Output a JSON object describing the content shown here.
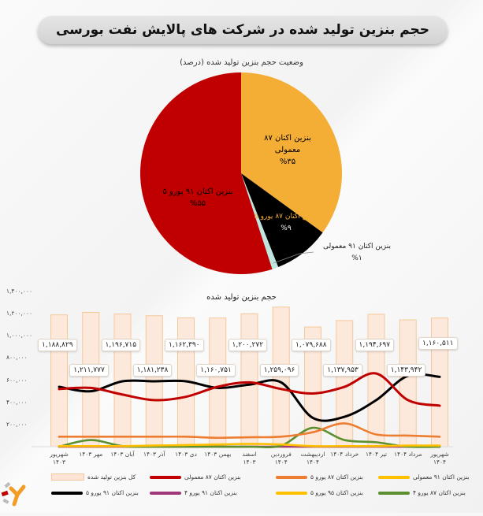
{
  "header": {
    "title": "حجم بنزین تولید شده در شرکت های پالایش نفت بورسی"
  },
  "pie": {
    "subtitle": "وضعیت حجم بنزین تولید شده (درصد)",
    "slices": [
      {
        "name": "بنزین اکتان ۸۷ معمولی",
        "line1": "بنزین اکتان ۸۷",
        "line2": "معمولی",
        "pct_label": "%۳۵",
        "value": 35,
        "color": "#f5ae35"
      },
      {
        "name": "بنزین اکتان ۸۷ یورو ۵",
        "line1": "بنزین اکتان ۸۷ یورو ۵",
        "pct_label": "%۹",
        "value": 9,
        "color": "#000000"
      },
      {
        "name": "بنزین اکتان ۹۱ معمولی",
        "line1": "بنزین اکتان ۹۱ معمولی",
        "pct_label": "%۱",
        "value": 1,
        "color": "#bfe5e0"
      },
      {
        "name": "بنزین اکتان ۹۱ یورو ۵",
        "line1": "بنزین اکتان ۹۱ یورو ۵",
        "pct_label": "%۵۵",
        "value": 55,
        "color": "#c00000"
      }
    ]
  },
  "line_chart": {
    "title": "حجم بنزین تولید شده",
    "y_ticks": [
      "-",
      "۲۰۰,۰۰۰",
      "۴۰۰,۰۰۰",
      "۶۰۰,۰۰۰",
      "۸۰۰,۰۰۰",
      "۱,۰۰۰,۰۰۰",
      "۱,۲۰۰,۰۰۰",
      "۱,۴۰۰,۰۰۰"
    ],
    "x_labels": [
      {
        "l1": "شهریور",
        "l2": "۱۴۰۳"
      },
      {
        "l1": "مهر ۱۴۰۳",
        "l2": ""
      },
      {
        "l1": "آبان ۱۴۰۳",
        "l2": ""
      },
      {
        "l1": "آذر ۱۴۰۳",
        "l2": ""
      },
      {
        "l1": "دی ۱۴۰۳",
        "l2": ""
      },
      {
        "l1": "بهمن ۱۴۰۳",
        "l2": ""
      },
      {
        "l1": "اسفند",
        "l2": "۱۴۰۳"
      },
      {
        "l1": "فروردین",
        "l2": "۱۴۰۴"
      },
      {
        "l1": "اردیبهشت",
        "l2": "۱۴۰۴"
      },
      {
        "l1": "خرداد ۱۴۰۴",
        "l2": ""
      },
      {
        "l1": "تیر ۱۴۰۴",
        "l2": ""
      },
      {
        "l1": "مرداد ۱۴۰۴",
        "l2": ""
      },
      {
        "l1": "شهریور",
        "l2": "۱۴۰۴"
      }
    ],
    "value_labels": [
      "۱,۱۸۸,۸۲۹",
      "۱,۲۱۱,۷۷۷",
      "۱,۱۹۶,۷۱۵",
      "۱,۱۸۱,۲۳۸",
      "۱,۱۶۲,۳۹۰",
      "۱,۱۶۰,۷۵۱",
      "۱,۲۰۰,۲۷۲",
      "۱,۲۵۹,۰۹۶",
      "۱,۰۷۹,۶۸۸",
      "۱,۱۳۷,۹۵۳",
      "۱,۱۹۴,۶۹۷",
      "۱,۱۴۳,۹۴۲",
      "۱,۱۶۰,۵۱۱"
    ]
  },
  "legend": [
    {
      "label": "کل بنزین تولید شده",
      "type": "bar",
      "color": "#fde4d4"
    },
    {
      "label": "بنزین اکتان ۸۷ معمولی",
      "type": "line",
      "color": "#c00000"
    },
    {
      "label": "بنزین اکتان ۸۷ یورو ۵",
      "type": "line",
      "color": "#ed7d31"
    },
    {
      "label": "بنزین اکتان ۹۱ معمولی",
      "type": "line",
      "color": "#ffc000"
    },
    {
      "label": "بنزین اکتان ۹۱ یورو ۵",
      "type": "line",
      "color": "#000000"
    },
    {
      "label": "بنزین اکتان ۹۱ یورو ۴",
      "type": "line",
      "color": "#a0377a"
    },
    {
      "label": "بنزین اکتان ۹۵ یورو ۵",
      "type": "line",
      "color": "#ffc000"
    },
    {
      "label": "بنزین اکتان ۸۷ یورو ۴",
      "type": "line",
      "color": "#5b8f2f"
    }
  ],
  "chart_data": [
    {
      "type": "pie",
      "title": "وضعیت حجم بنزین تولید شده (درصد)",
      "categories": [
        "بنزین اکتان ۸۷ معمولی",
        "بنزین اکتان ۸۷ یورو ۵",
        "بنزین اکتان ۹۱ معمولی",
        "بنزین اکتان ۹۱ یورو ۵"
      ],
      "values": [
        35,
        9,
        1,
        55
      ],
      "colors": [
        "#f5ae35",
        "#000000",
        "#bfe5e0",
        "#c00000"
      ]
    },
    {
      "type": "bar",
      "title": "حجم بنزین تولید شده",
      "xlabel": "",
      "ylabel": "",
      "ylim": [
        0,
        1400000
      ],
      "grid": false,
      "legend_position": "bottom",
      "categories": [
        "شهریور ۱۴۰۳",
        "مهر ۱۴۰۳",
        "آبان ۱۴۰۳",
        "آذر ۱۴۰۳",
        "دی ۱۴۰۳",
        "بهمن ۱۴۰۳",
        "اسفند ۱۴۰۳",
        "فروردین ۱۴۰۴",
        "اردیبهشت ۱۴۰۴",
        "خرداد ۱۴۰۴",
        "تیر ۱۴۰۴",
        "مرداد ۱۴۰۴",
        "شهریور ۱۴۰۴"
      ],
      "series": [
        {
          "name": "کل بنزین تولید شده",
          "type": "bar",
          "values": [
            1188829,
            1211777,
            1196715,
            1181238,
            1162390,
            1160751,
            1200272,
            1259096,
            1079688,
            1137953,
            1194697,
            1143942,
            1160511
          ]
        },
        {
          "name": "بنزین اکتان ۸۷ معمولی",
          "type": "line",
          "values": [
            520000,
            530000,
            470000,
            420000,
            450000,
            540000,
            580000,
            520000,
            480000,
            540000,
            660000,
            420000,
            370000
          ]
        },
        {
          "name": "بنزین اکتان ۹۱ یورو ۵",
          "type": "line",
          "values": [
            540000,
            500000,
            590000,
            590000,
            590000,
            530000,
            560000,
            580000,
            260000,
            270000,
            420000,
            640000,
            630000
          ]
        },
        {
          "name": "بنزین اکتان ۸۷ یورو ۵",
          "type": "line",
          "values": [
            90000,
            90000,
            90000,
            90000,
            90000,
            80000,
            85000,
            90000,
            130000,
            210000,
            110000,
            100000,
            90000
          ]
        },
        {
          "name": "بنزین اکتان ۸۷ یورو ۴",
          "type": "line",
          "values": [
            0,
            60000,
            5000,
            0,
            0,
            0,
            0,
            10000,
            170000,
            60000,
            40000,
            0,
            0
          ]
        },
        {
          "name": "بنزین اکتان ۹۱ معمولی",
          "type": "line",
          "values": [
            5000,
            5000,
            5000,
            10000,
            15000,
            20000,
            25000,
            20000,
            5000,
            5000,
            5000,
            10000,
            10000
          ]
        },
        {
          "name": "بنزین اکتان ۹۵ یورو ۵",
          "type": "line",
          "values": [
            0,
            0,
            0,
            0,
            0,
            0,
            0,
            0,
            0,
            0,
            0,
            0,
            0
          ]
        },
        {
          "name": "بنزین اکتان ۹۱ یورو ۴",
          "type": "line",
          "values": [
            0,
            0,
            0,
            0,
            0,
            0,
            0,
            0,
            0,
            0,
            0,
            0,
            0
          ]
        }
      ]
    }
  ]
}
